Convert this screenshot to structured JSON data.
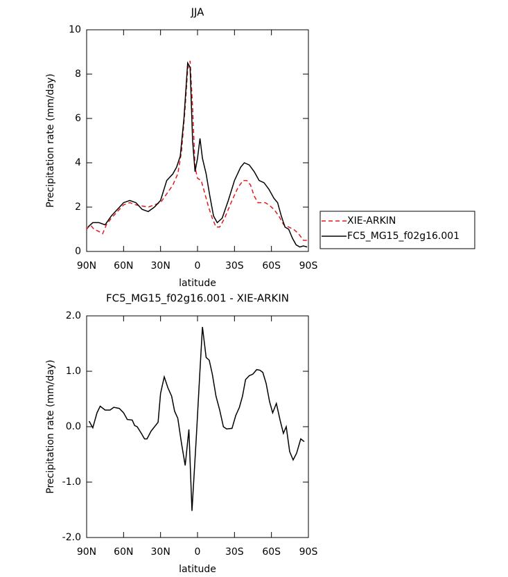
{
  "chart_data": [
    {
      "type": "line",
      "title": "JJA",
      "xlabel": "latitude",
      "ylabel": "Precipitation rate (mm/day)",
      "xlim": [
        90,
        -90
      ],
      "xticks": [
        {
          "value": 90,
          "label": "90N"
        },
        {
          "value": 60,
          "label": "60N"
        },
        {
          "value": 30,
          "label": "30N"
        },
        0,
        {
          "value": -30,
          "label": "30S"
        },
        {
          "value": -60,
          "label": "60S"
        },
        {
          "value": -90,
          "label": "90S"
        }
      ],
      "ylim": [
        0,
        10
      ],
      "yticks": [
        0,
        2,
        4,
        6,
        8,
        10
      ],
      "legend": "right",
      "series": [
        {
          "name": "XIE-ARKIN",
          "color": "#e0191e",
          "linestyle": "dashed",
          "x": [
            90,
            87,
            84,
            80,
            77,
            74,
            70,
            65,
            60,
            55,
            50,
            45,
            40,
            35,
            30,
            25,
            20,
            16,
            13,
            10,
            8,
            6,
            4,
            2,
            0,
            -3,
            -6,
            -9,
            -12,
            -15,
            -18,
            -22,
            -28,
            -33,
            -37,
            -40,
            -43,
            -46,
            -49,
            -55,
            -58,
            -62,
            -66,
            -70,
            -74,
            -78,
            -82,
            -86,
            -89
          ],
          "values": [
            1.0,
            1.2,
            1.0,
            0.9,
            0.8,
            1.2,
            1.5,
            1.8,
            2.1,
            2.2,
            2.1,
            2.05,
            2.0,
            2.1,
            2.2,
            2.6,
            3.0,
            3.5,
            4.5,
            6.5,
            8.2,
            8.6,
            6.5,
            3.8,
            3.3,
            3.2,
            2.6,
            2.0,
            1.5,
            1.1,
            1.1,
            1.5,
            2.3,
            2.9,
            3.2,
            3.2,
            3.0,
            2.5,
            2.2,
            2.2,
            2.1,
            1.9,
            1.6,
            1.2,
            1.1,
            1.0,
            0.8,
            0.5,
            0.5
          ]
        },
        {
          "name": "FC5_MG15_f02g16.001",
          "color": "#000000",
          "linestyle": "solid",
          "x": [
            89,
            85,
            80,
            75,
            70,
            65,
            60,
            55,
            50,
            45,
            40,
            35,
            30,
            25,
            20,
            17,
            14,
            11,
            8,
            6,
            4,
            2,
            0,
            -2,
            -4,
            -7,
            -10,
            -13,
            -16,
            -20,
            -25,
            -30,
            -35,
            -38,
            -42,
            -46,
            -50,
            -54,
            -58,
            -62,
            -65,
            -68,
            -71,
            -74,
            -77,
            -80,
            -83,
            -86,
            -89
          ],
          "values": [
            1.1,
            1.3,
            1.3,
            1.2,
            1.6,
            1.9,
            2.2,
            2.3,
            2.2,
            1.9,
            1.8,
            2.0,
            2.3,
            3.2,
            3.5,
            3.8,
            4.3,
            6.0,
            8.5,
            8.3,
            5.0,
            3.6,
            4.2,
            5.1,
            4.2,
            3.5,
            2.5,
            1.6,
            1.3,
            1.5,
            2.3,
            3.2,
            3.8,
            4.0,
            3.9,
            3.6,
            3.2,
            3.1,
            2.8,
            2.4,
            2.2,
            1.6,
            1.1,
            1.0,
            0.6,
            0.3,
            0.2,
            0.25,
            0.2
          ]
        }
      ]
    },
    {
      "type": "line",
      "title": "FC5_MG15_f02g16.001 - XIE-ARKIN",
      "xlabel": "latitude",
      "ylabel": "Precipitation rate (mm/day)",
      "xlim": [
        90,
        -90
      ],
      "xticks": [
        {
          "value": 90,
          "label": "90N"
        },
        {
          "value": 60,
          "label": "60N"
        },
        {
          "value": 30,
          "label": "30N"
        },
        0,
        {
          "value": -30,
          "label": "30S"
        },
        {
          "value": -60,
          "label": "60S"
        },
        {
          "value": -90,
          "label": "90S"
        }
      ],
      "ylim": [
        -2,
        2
      ],
      "yticks": [
        {
          "value": -2,
          "label": "-2.0"
        },
        {
          "value": -1,
          "label": "-1.0"
        },
        {
          "value": 0,
          "label": "0.0"
        },
        {
          "value": 1,
          "label": "1.0"
        },
        {
          "value": 2,
          "label": "2.0"
        }
      ],
      "series": [
        {
          "color": "#000000",
          "linestyle": "solid",
          "x": [
            88,
            85,
            81.6,
            79,
            75,
            71,
            68,
            63.5,
            60,
            57,
            53,
            51,
            49,
            45.6,
            43,
            41,
            37.7,
            32,
            30,
            27,
            24,
            21,
            18.6,
            16,
            13,
            10,
            7,
            4.5,
            1,
            -1.7,
            -4,
            -7,
            -9.5,
            -12,
            -15,
            -18,
            -21,
            -23.6,
            -28,
            -31,
            -34,
            -36.5,
            -39,
            -42,
            -45,
            -48,
            -50.6,
            -53,
            -55.7,
            -58.5,
            -61,
            -64,
            -67,
            -69.7,
            -72,
            -74.8,
            -77.6,
            -80.4,
            -83.8,
            -86.6
          ],
          "values": [
            0.1,
            -0.02,
            0.25,
            0.37,
            0.3,
            0.3,
            0.35,
            0.33,
            0.25,
            0.13,
            0.12,
            0.02,
            0.0,
            -0.12,
            -0.22,
            -0.22,
            -0.08,
            0.08,
            0.6,
            0.9,
            0.7,
            0.55,
            0.28,
            0.15,
            -0.3,
            -0.7,
            -0.05,
            -1.52,
            -0.2,
            0.9,
            1.8,
            1.25,
            1.2,
            0.95,
            0.55,
            0.3,
            0.0,
            -0.04,
            -0.03,
            0.2,
            0.35,
            0.55,
            0.85,
            0.92,
            0.95,
            1.03,
            1.02,
            0.98,
            0.78,
            0.45,
            0.25,
            0.42,
            0.12,
            -0.12,
            0.0,
            -0.45,
            -0.6,
            -0.48,
            -0.22,
            -0.27
          ]
        }
      ]
    }
  ]
}
